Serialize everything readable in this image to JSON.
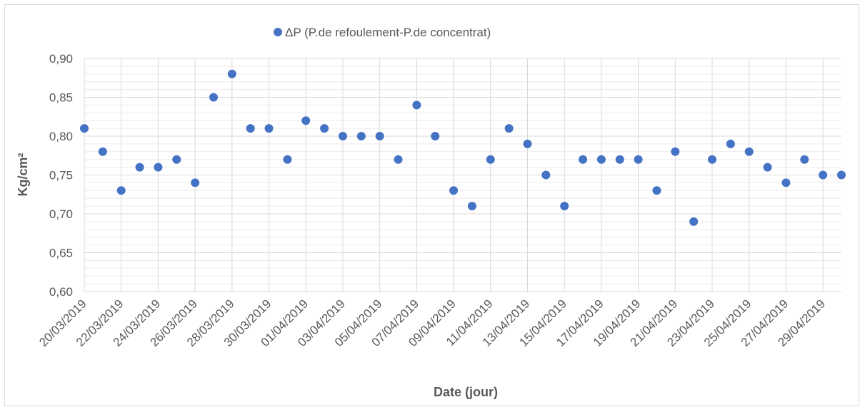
{
  "chart_data": {
    "type": "scatter",
    "title": "",
    "xlabel": "Date (jour)",
    "ylabel": "Kg/cm²",
    "ylim": [
      0.6,
      0.9
    ],
    "y_major_step": 0.05,
    "y_minor_step": 0.01,
    "grid": true,
    "legend_position": "top",
    "colors": {
      "marker": "#4472c4",
      "grid_major": "#d9d9d9",
      "grid_minor": "#ececec",
      "text": "#595959"
    },
    "series": [
      {
        "name": "ΔP (P.de refoulement-P.de concentrat)",
        "x": [
          "20/03/2019",
          "21/03/2019",
          "22/03/2019",
          "23/03/2019",
          "24/03/2019",
          "25/03/2019",
          "26/03/2019",
          "27/03/2019",
          "28/03/2019",
          "29/03/2019",
          "30/03/2019",
          "31/03/2019",
          "01/04/2019",
          "02/04/2019",
          "03/04/2019",
          "04/04/2019",
          "05/04/2019",
          "06/04/2019",
          "07/04/2019",
          "08/04/2019",
          "09/04/2019",
          "10/04/2019",
          "11/04/2019",
          "12/04/2019",
          "13/04/2019",
          "14/04/2019",
          "15/04/2019",
          "16/04/2019",
          "17/04/2019",
          "18/04/2019",
          "19/04/2019",
          "20/04/2019",
          "21/04/2019",
          "22/04/2019",
          "23/04/2019",
          "24/04/2019",
          "25/04/2019",
          "26/04/2019",
          "27/04/2019",
          "28/04/2019",
          "29/04/2019",
          "30/04/2019"
        ],
        "values": [
          0.81,
          0.78,
          0.73,
          0.76,
          0.76,
          0.77,
          0.74,
          0.85,
          0.88,
          0.81,
          0.81,
          0.77,
          0.82,
          0.81,
          0.8,
          0.8,
          0.8,
          0.77,
          0.84,
          0.8,
          0.73,
          0.71,
          0.77,
          0.81,
          0.79,
          0.75,
          0.71,
          0.77,
          0.77,
          0.77,
          0.77,
          0.73,
          0.78,
          0.69,
          0.77,
          0.79,
          0.78,
          0.76,
          0.74,
          0.77,
          0.75,
          0.75
        ]
      }
    ],
    "y_tick_labels": [
      "0,60",
      "0,65",
      "0,70",
      "0,75",
      "0,80",
      "0,85",
      "0,90"
    ],
    "x_tick_labels": [
      "20/03/2019",
      "22/03/2019",
      "24/03/2019",
      "26/03/2019",
      "28/03/2019",
      "30/03/2019",
      "01/04/2019",
      "03/04/2019",
      "05/04/2019",
      "07/04/2019",
      "09/04/2019",
      "11/04/2019",
      "13/04/2019",
      "15/04/2019",
      "17/04/2019",
      "19/04/2019",
      "21/04/2019",
      "23/04/2019",
      "25/04/2019",
      "27/04/2019",
      "29/04/2019"
    ]
  }
}
